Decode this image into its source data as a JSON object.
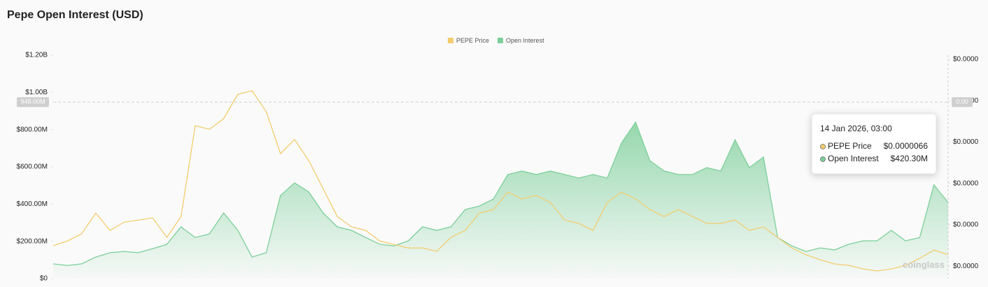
{
  "chart_data": {
    "type": "area-line",
    "title": "Pepe Open Interest (USD)",
    "legend": "top",
    "grid": false,
    "categories": [
      null,
      null,
      null,
      null,
      null,
      null,
      null,
      null,
      null,
      null,
      null,
      null,
      null,
      null,
      null,
      null,
      null,
      null,
      null,
      null,
      null,
      null,
      null,
      null,
      null,
      null,
      null,
      null,
      null,
      null,
      null,
      null,
      null,
      null,
      null,
      null,
      null,
      null,
      null,
      null,
      null,
      null,
      null,
      null,
      null,
      null,
      null,
      null,
      null,
      null,
      null,
      null,
      null,
      null,
      null,
      null,
      null,
      null,
      null,
      null,
      null,
      null,
      null,
      null
    ],
    "series": [
      {
        "name": "PEPE Price",
        "color": "#f3cd6e",
        "axis": "y2",
        "values": [
          6.99e-06,
          7.22e-06,
          7.56e-06,
          8.57e-06,
          7.73e-06,
          8.13e-06,
          8.23e-06,
          8.34e-06,
          7.39e-06,
          8.4e-06,
          1.279e-05,
          1.262e-05,
          1.313e-05,
          1.431e-05,
          1.448e-05,
          1.347e-05,
          1.144e-05,
          1.212e-05,
          1.11e-05,
          9.75e-06,
          8.4e-06,
          7.9e-06,
          7.73e-06,
          7.22e-06,
          7.05e-06,
          6.88e-06,
          6.88e-06,
          6.72e-06,
          7.39e-06,
          7.73e-06,
          8.57e-06,
          8.74e-06,
          9.58e-06,
          9.25e-06,
          9.42e-06,
          9.08e-06,
          8.23e-06,
          8.07e-06,
          7.73e-06,
          9.08e-06,
          9.58e-06,
          9.25e-06,
          8.74e-06,
          8.4e-06,
          8.74e-06,
          8.4e-06,
          8.07e-06,
          8.07e-06,
          8.23e-06,
          7.73e-06,
          7.9e-06,
          7.39e-06,
          6.88e-06,
          6.55e-06,
          6.31e-06,
          6.11e-06,
          6.04e-06,
          5.87e-06,
          5.77e-06,
          5.87e-06,
          6.04e-06,
          6.38e-06,
          6.78e-06,
          6.55e-06
        ]
      },
      {
        "name": "Open Interest",
        "color": "#7dcf9a",
        "values": [
          79000000.0,
          71000000.0,
          79000000.0,
          116000000.0,
          139000000.0,
          146000000.0,
          139000000.0,
          161000000.0,
          184000000.0,
          278000000.0,
          221000000.0,
          240000000.0,
          353000000.0,
          259000000.0,
          116000000.0,
          139000000.0,
          446000000.0,
          514000000.0,
          465000000.0,
          353000000.0,
          278000000.0,
          259000000.0,
          221000000.0,
          184000000.0,
          176000000.0,
          203000000.0,
          278000000.0,
          259000000.0,
          278000000.0,
          371000000.0,
          390000000.0,
          428000000.0,
          559000000.0,
          578000000.0,
          559000000.0,
          578000000.0,
          559000000.0,
          540000000.0,
          559000000.0,
          540000000.0,
          728000000.0,
          840000000.0,
          634000000.0,
          578000000.0,
          559000000.0,
          559000000.0,
          596000000.0,
          578000000.0,
          746000000.0,
          596000000.0,
          653000000.0,
          221000000.0,
          176000000.0,
          146000000.0,
          165000000.0,
          154000000.0,
          184000000.0,
          203000000.0,
          203000000.0,
          259000000.0,
          203000000.0,
          221000000.0,
          503000000.0,
          409000000.0
        ]
      }
    ],
    "ylim": [
      0,
      1200000000
    ],
    "yticks": [
      {
        "value": 0,
        "label": "$0"
      },
      {
        "value": 200000000,
        "label": "$200.00M"
      },
      {
        "value": 400000000,
        "label": "$400.00M"
      },
      {
        "value": 600000000,
        "label": "$600.00M"
      },
      {
        "value": 800000000,
        "label": "$800.00M"
      },
      {
        "value": 1000000000,
        "label": "$1.00B"
      },
      {
        "value": 1200000000,
        "label": "$1.20B"
      }
    ],
    "y2lim": [
      5.4e-06,
      1.62e-05
    ],
    "y2ticks": [
      {
        "value": 6e-06,
        "label": "$0.0000"
      },
      {
        "value": 8e-06,
        "label": "$0.0000"
      },
      {
        "value": 1e-05,
        "label": "$0.0000"
      },
      {
        "value": 1.2e-05,
        "label": "$0.0000"
      },
      {
        "value": 1.4e-05,
        "label": "$0.0000"
      },
      {
        "value": 1.6e-05,
        "label": "$0.0000"
      }
    ],
    "crosshair": {
      "value": 948000000,
      "label": "948.00M",
      "y2_label": "0.00"
    },
    "tooltip": {
      "date": "14 Jan 2026, 03:00",
      "rows": [
        {
          "name": "PEPE Price",
          "value": "$0.0000066"
        },
        {
          "name": "Open Interest",
          "value": "$420.30M"
        }
      ]
    },
    "watermark": "coinglass"
  }
}
